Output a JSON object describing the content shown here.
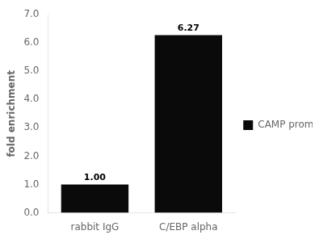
{
  "chart_data": {
    "type": "bar",
    "categories": [
      "rabbit IgG",
      "C/EBP alpha"
    ],
    "series": [
      {
        "name": "CAMP promoter",
        "color": "#0a0a0a",
        "values": [
          1.0,
          6.27
        ],
        "value_labels": [
          "1.00",
          "6.27"
        ]
      }
    ],
    "data_labels": true,
    "ylabel": "fold enrichment",
    "ylim": [
      0,
      7.0
    ],
    "yticks": [
      {
        "value": 0.0,
        "label": "0.0"
      },
      {
        "value": 1.0,
        "label": "1.0"
      },
      {
        "value": 2.0,
        "label": "2.0"
      },
      {
        "value": 3.0,
        "label": "3.0"
      },
      {
        "value": 4.0,
        "label": "4.0"
      },
      {
        "value": 5.0,
        "label": "5.0"
      },
      {
        "value": 6.0,
        "label": "6.0"
      },
      {
        "value": 7.0,
        "label": "7.0"
      }
    ],
    "grid": false,
    "legend": "right"
  }
}
